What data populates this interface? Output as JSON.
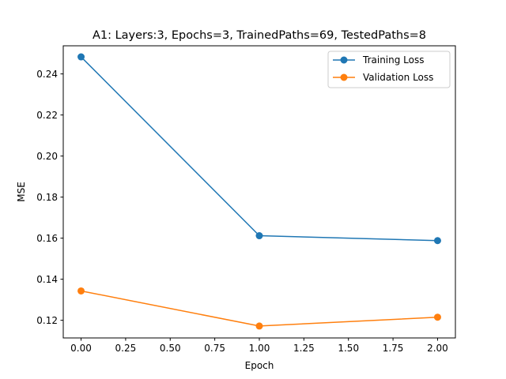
{
  "chart_data": {
    "type": "line",
    "title": "A1: Layers:3, Epochs=3, TrainedPaths=69, TestedPaths=8",
    "xlabel": "Epoch",
    "ylabel": "MSE",
    "xlim": [
      -0.1,
      2.1
    ],
    "ylim": [
      0.1114,
      0.2537
    ],
    "xticks": [
      0.0,
      0.25,
      0.5,
      0.75,
      1.0,
      1.25,
      1.5,
      1.75,
      2.0
    ],
    "xtick_labels": [
      "0.00",
      "0.25",
      "0.50",
      "0.75",
      "1.00",
      "1.25",
      "1.50",
      "1.75",
      "2.00"
    ],
    "yticks": [
      0.12,
      0.14,
      0.16,
      0.18,
      0.2,
      0.22,
      0.24
    ],
    "ytick_labels": [
      "0.12",
      "0.14",
      "0.16",
      "0.18",
      "0.20",
      "0.22",
      "0.24"
    ],
    "grid": false,
    "legend_position": "top-right",
    "x": [
      0,
      1,
      2
    ],
    "series": [
      {
        "name": "Training Loss",
        "color": "#1f77b4",
        "values": [
          0.2483,
          0.1612,
          0.1588
        ]
      },
      {
        "name": "Validation Loss",
        "color": "#ff7f0e",
        "values": [
          0.1343,
          0.1172,
          0.1215
        ]
      }
    ]
  }
}
